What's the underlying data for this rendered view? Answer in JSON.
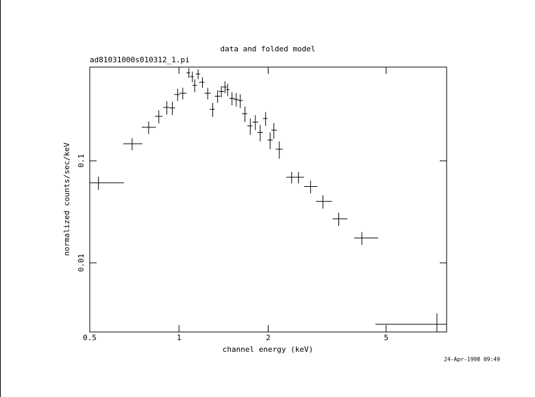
{
  "chart_data": {
    "type": "errorbar",
    "title": "data and folded model",
    "subtitle": "ad81031000s010312_1.pi",
    "xlabel": "channel energy (keV)",
    "ylabel": "normalized counts/sec/keV",
    "timestamp": "24-Apr-1998 09:49",
    "log_x": true,
    "log_y": true,
    "color": "#000000",
    "xlim": [
      0.5,
      8
    ],
    "ylim": [
      0.0021,
      0.83
    ],
    "xticks": [
      0.5,
      1,
      2,
      5
    ],
    "yticks": [
      0.01,
      0.1
    ],
    "x": [
      0.535,
      0.695,
      0.79,
      0.855,
      0.91,
      0.95,
      0.99,
      1.03,
      1.08,
      1.11,
      1.13,
      1.16,
      1.2,
      1.25,
      1.3,
      1.35,
      1.39,
      1.43,
      1.46,
      1.51,
      1.56,
      1.61,
      1.67,
      1.74,
      1.81,
      1.88,
      1.96,
      2.03,
      2.09,
      2.18,
      2.4,
      2.53,
      2.78,
      3.06,
      3.46,
      4.14,
      7.42
    ],
    "x_low": [
      0.5,
      0.649,
      0.749,
      0.83,
      0.885,
      0.93,
      0.965,
      1.005,
      1.06,
      1.09,
      1.11,
      1.14,
      1.17,
      1.22,
      1.27,
      1.32,
      1.36,
      1.4,
      1.44,
      1.48,
      1.53,
      1.58,
      1.63,
      1.7,
      1.77,
      1.84,
      1.92,
      1.99,
      2.05,
      2.12,
      2.3,
      2.47,
      2.64,
      2.9,
      3.3,
      3.9,
      4.6
    ],
    "x_high": [
      0.652,
      0.753,
      0.837,
      0.88,
      0.93,
      0.97,
      1.005,
      1.06,
      1.09,
      1.12,
      1.15,
      1.18,
      1.22,
      1.28,
      1.32,
      1.38,
      1.42,
      1.45,
      1.48,
      1.54,
      1.59,
      1.64,
      1.7,
      1.77,
      1.85,
      1.92,
      1.99,
      2.07,
      2.14,
      2.24,
      2.47,
      2.64,
      2.93,
      3.28,
      3.7,
      4.7,
      8
    ],
    "values": [
      0.061,
      0.147,
      0.213,
      0.273,
      0.334,
      0.33,
      0.447,
      0.46,
      0.73,
      0.67,
      0.55,
      0.71,
      0.59,
      0.46,
      0.32,
      0.43,
      0.48,
      0.53,
      0.5,
      0.41,
      0.4,
      0.39,
      0.29,
      0.22,
      0.24,
      0.19,
      0.26,
      0.16,
      0.2,
      0.13,
      0.069,
      0.069,
      0.056,
      0.04,
      0.027,
      0.0175,
      0.0025
    ],
    "yerr": [
      0.009,
      0.02,
      0.03,
      0.04,
      0.05,
      0.05,
      0.06,
      0.06,
      0.08,
      0.08,
      0.08,
      0.08,
      0.07,
      0.06,
      0.05,
      0.06,
      0.06,
      0.07,
      0.07,
      0.06,
      0.06,
      0.06,
      0.05,
      0.04,
      0.04,
      0.035,
      0.04,
      0.03,
      0.035,
      0.025,
      0.009,
      0.009,
      0.008,
      0.006,
      0.004,
      0.0025,
      0.0007
    ]
  }
}
